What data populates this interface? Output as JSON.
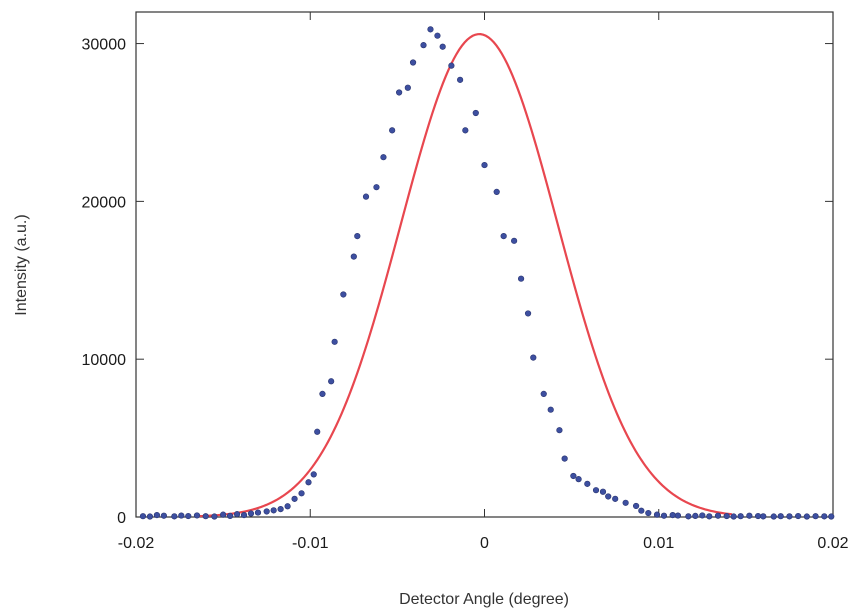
{
  "chart_data": {
    "type": "scatter",
    "xlabel": "Detector Angle (degree)",
    "ylabel": "Intensity (a.u.)",
    "xlim": [
      -0.02,
      0.02
    ],
    "ylim": [
      0,
      32000
    ],
    "xticks": [
      -0.02,
      -0.01,
      0,
      0.01,
      0.02
    ],
    "xtick_labels": [
      "-0.02",
      "-0.01",
      "0",
      "0.01",
      "0.02"
    ],
    "yticks": [
      0,
      10000,
      20000,
      30000
    ],
    "ytick_labels": [
      "0",
      "10000",
      "20000",
      "30000"
    ],
    "grid": false,
    "legend": "none",
    "series": [
      {
        "kind": "scatter",
        "color": "#3d4fa0",
        "x": [
          -0.0196,
          -0.0192,
          -0.0188,
          -0.0184,
          -0.0178,
          -0.0174,
          -0.017,
          -0.0165,
          -0.016,
          -0.0155,
          -0.015,
          -0.0146,
          -0.0142,
          -0.0138,
          -0.0134,
          -0.013,
          -0.0125,
          -0.0121,
          -0.0117,
          -0.0113,
          -0.0109,
          -0.0105,
          -0.0101,
          -0.0098,
          -0.0096,
          -0.0093,
          -0.0088,
          -0.0086,
          -0.0081,
          -0.0075,
          -0.0073,
          -0.0068,
          -0.0062,
          -0.0058,
          -0.0053,
          -0.0049,
          -0.0044,
          -0.0041,
          -0.0035,
          -0.0031,
          -0.0027,
          -0.0024,
          -0.0019,
          -0.0014,
          -0.0011,
          -0.0005,
          0.0,
          0.0007,
          0.0011,
          0.0017,
          0.0021,
          0.0025,
          0.0028,
          0.0034,
          0.0038,
          0.0043,
          0.0046,
          0.0051,
          0.0054,
          0.0059,
          0.0064,
          0.0068,
          0.0071,
          0.0075,
          0.0081,
          0.0087,
          0.009,
          0.0094,
          0.0099,
          0.0103,
          0.0108,
          0.0111,
          0.0117,
          0.0121,
          0.0125,
          0.0129,
          0.0134,
          0.0139,
          0.0143,
          0.0147,
          0.0152,
          0.0157,
          0.016,
          0.0166,
          0.017,
          0.0175,
          0.018,
          0.0185,
          0.019,
          0.0195,
          0.0199
        ],
        "y": [
          50,
          30,
          120,
          80,
          40,
          90,
          60,
          100,
          50,
          30,
          150,
          70,
          180,
          120,
          220,
          280,
          350,
          420,
          500,
          680,
          1150,
          1500,
          2200,
          2700,
          5400,
          7800,
          8600,
          11100,
          14100,
          16500,
          17800,
          20300,
          20900,
          22800,
          24500,
          26900,
          27200,
          28800,
          29900,
          30900,
          30500,
          29800,
          28600,
          27700,
          24500,
          25600,
          22300,
          20600,
          17800,
          17500,
          15100,
          12900,
          10100,
          7800,
          6800,
          5500,
          3700,
          2600,
          2400,
          2100,
          1700,
          1600,
          1300,
          1150,
          900,
          700,
          400,
          250,
          150,
          80,
          120,
          90,
          40,
          70,
          100,
          40,
          80,
          60,
          30,
          50,
          80,
          60,
          40,
          30,
          50,
          40,
          60,
          30,
          50,
          40,
          30
        ]
      },
      {
        "kind": "line",
        "color": "#e8474f",
        "function": "gaussian_fit",
        "amplitude": 30600,
        "center": -0.0003,
        "sigma": 0.0045,
        "x_range": [
          -0.0165,
          0.0142
        ]
      }
    ]
  }
}
